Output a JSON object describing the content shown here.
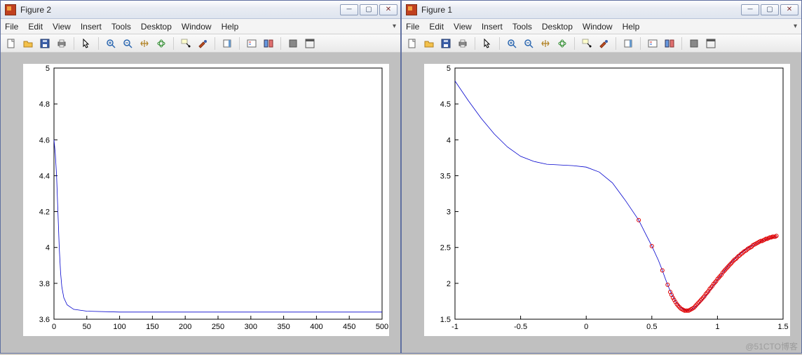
{
  "watermark": "@51CTO博客",
  "menus": [
    "File",
    "Edit",
    "View",
    "Insert",
    "Tools",
    "Desktop",
    "Window",
    "Help"
  ],
  "toolbar_icons": [
    "new-file-icon",
    "open-file-icon",
    "save-icon",
    "print-icon",
    "sep",
    "pointer-icon",
    "sep",
    "zoom-in-icon",
    "zoom-out-icon",
    "pan-icon",
    "rotate3d-icon",
    "sep",
    "data-cursor-icon",
    "brush-icon",
    "sep",
    "insert-colorbar-icon",
    "sep",
    "insert-legend-icon",
    "hide-plot-tools-icon",
    "sep",
    "link-plot-icon",
    "dock-figure-icon"
  ],
  "windows": [
    {
      "id": "fig2",
      "title": "Figure 2",
      "chart": {
        "type": "line",
        "background_color": "#ffffff",
        "axis_color": "#000000",
        "line_color": "#0000cd",
        "line_width": 0.8,
        "xlim": [
          0,
          500
        ],
        "ylim": [
          3.6,
          5.0
        ],
        "xticks": [
          0,
          50,
          100,
          150,
          200,
          250,
          300,
          350,
          400,
          450,
          500
        ],
        "yticks": [
          3.6,
          3.8,
          4.0,
          4.2,
          4.4,
          4.6,
          4.8,
          5.0
        ],
        "ytick_labels": [
          "3.6",
          "3.8",
          "4",
          "4.2",
          "4.4",
          "4.6",
          "4.8",
          "5"
        ],
        "series": [
          {
            "x": 0,
            "y": 4.6
          },
          {
            "x": 2,
            "y": 4.52
          },
          {
            "x": 4,
            "y": 4.4
          },
          {
            "x": 6,
            "y": 4.2
          },
          {
            "x": 8,
            "y": 4.0
          },
          {
            "x": 10,
            "y": 3.86
          },
          {
            "x": 12,
            "y": 3.78
          },
          {
            "x": 15,
            "y": 3.72
          },
          {
            "x": 20,
            "y": 3.68
          },
          {
            "x": 30,
            "y": 3.655
          },
          {
            "x": 50,
            "y": 3.645
          },
          {
            "x": 100,
            "y": 3.64
          },
          {
            "x": 200,
            "y": 3.64
          },
          {
            "x": 300,
            "y": 3.64
          },
          {
            "x": 400,
            "y": 3.64
          },
          {
            "x": 500,
            "y": 3.64
          }
        ]
      }
    },
    {
      "id": "fig1",
      "title": "Figure 1",
      "chart": {
        "type": "line+scatter",
        "background_color": "#ffffff",
        "axis_color": "#000000",
        "line_color": "#0000cd",
        "line_width": 0.8,
        "marker_edge_color": "#e00000",
        "marker_face_color": "none",
        "marker_style": "circle",
        "marker_size": 5,
        "xlim": [
          -1.0,
          1.5
        ],
        "ylim": [
          1.5,
          5.0
        ],
        "xticks": [
          -1,
          -0.5,
          0,
          0.5,
          1,
          1.5
        ],
        "xtick_labels": [
          "-1",
          "-0.5",
          "0",
          "0.5",
          "1",
          "1.5"
        ],
        "yticks": [
          1.5,
          2.0,
          2.5,
          3.0,
          3.5,
          4.0,
          4.5,
          5.0
        ],
        "ytick_labels": [
          "1.5",
          "2",
          "2.5",
          "3",
          "3.5",
          "4",
          "4.5",
          "5"
        ],
        "line_series": [
          {
            "x": -1.0,
            "y": 4.82
          },
          {
            "x": -0.9,
            "y": 4.55
          },
          {
            "x": -0.8,
            "y": 4.3
          },
          {
            "x": -0.7,
            "y": 4.08
          },
          {
            "x": -0.6,
            "y": 3.9
          },
          {
            "x": -0.5,
            "y": 3.77
          },
          {
            "x": -0.4,
            "y": 3.7
          },
          {
            "x": -0.3,
            "y": 3.66
          },
          {
            "x": -0.2,
            "y": 3.65
          },
          {
            "x": -0.1,
            "y": 3.64
          },
          {
            "x": 0.0,
            "y": 3.62
          },
          {
            "x": 0.1,
            "y": 3.55
          },
          {
            "x": 0.2,
            "y": 3.4
          },
          {
            "x": 0.3,
            "y": 3.15
          },
          {
            "x": 0.4,
            "y": 2.88
          },
          {
            "x": 0.45,
            "y": 2.7
          },
          {
            "x": 0.5,
            "y": 2.52
          },
          {
            "x": 0.55,
            "y": 2.32
          },
          {
            "x": 0.58,
            "y": 2.18
          },
          {
            "x": 0.6,
            "y": 2.08
          },
          {
            "x": 0.62,
            "y": 1.98
          },
          {
            "x": 0.65,
            "y": 1.85
          },
          {
            "x": 0.68,
            "y": 1.75
          },
          {
            "x": 0.72,
            "y": 1.66
          },
          {
            "x": 0.76,
            "y": 1.62
          },
          {
            "x": 0.8,
            "y": 1.63
          },
          {
            "x": 0.85,
            "y": 1.7
          },
          {
            "x": 0.9,
            "y": 1.8
          },
          {
            "x": 0.95,
            "y": 1.92
          },
          {
            "x": 1.0,
            "y": 2.05
          },
          {
            "x": 1.05,
            "y": 2.17
          },
          {
            "x": 1.1,
            "y": 2.28
          },
          {
            "x": 1.15,
            "y": 2.37
          },
          {
            "x": 1.2,
            "y": 2.45
          },
          {
            "x": 1.25,
            "y": 2.51
          },
          {
            "x": 1.3,
            "y": 2.56
          },
          {
            "x": 1.35,
            "y": 2.6
          },
          {
            "x": 1.4,
            "y": 2.63
          },
          {
            "x": 1.45,
            "y": 2.65
          }
        ],
        "scatter_series": [
          {
            "x": 0.4,
            "y": 2.88
          },
          {
            "x": 0.5,
            "y": 2.52
          },
          {
            "x": 0.58,
            "y": 2.18
          },
          {
            "x": 0.62,
            "y": 1.98
          },
          {
            "x": 0.64,
            "y": 1.88
          },
          {
            "x": 0.65,
            "y": 1.84
          },
          {
            "x": 0.66,
            "y": 1.8
          },
          {
            "x": 0.67,
            "y": 1.77
          },
          {
            "x": 0.68,
            "y": 1.74
          },
          {
            "x": 0.69,
            "y": 1.71
          },
          {
            "x": 0.7,
            "y": 1.69
          },
          {
            "x": 0.71,
            "y": 1.67
          },
          {
            "x": 0.72,
            "y": 1.65
          },
          {
            "x": 0.73,
            "y": 1.64
          },
          {
            "x": 0.74,
            "y": 1.63
          },
          {
            "x": 0.75,
            "y": 1.62
          },
          {
            "x": 0.76,
            "y": 1.62
          },
          {
            "x": 0.77,
            "y": 1.62
          },
          {
            "x": 0.78,
            "y": 1.62
          },
          {
            "x": 0.79,
            "y": 1.63
          },
          {
            "x": 0.8,
            "y": 1.64
          },
          {
            "x": 0.81,
            "y": 1.65
          },
          {
            "x": 0.82,
            "y": 1.66
          },
          {
            "x": 0.83,
            "y": 1.68
          },
          {
            "x": 0.84,
            "y": 1.7
          },
          {
            "x": 0.85,
            "y": 1.72
          },
          {
            "x": 0.86,
            "y": 1.74
          },
          {
            "x": 0.87,
            "y": 1.76
          },
          {
            "x": 0.88,
            "y": 1.78
          },
          {
            "x": 0.89,
            "y": 1.8
          },
          {
            "x": 0.9,
            "y": 1.82
          },
          {
            "x": 0.91,
            "y": 1.85
          },
          {
            "x": 0.92,
            "y": 1.87
          },
          {
            "x": 0.93,
            "y": 1.89
          },
          {
            "x": 0.94,
            "y": 1.92
          },
          {
            "x": 0.95,
            "y": 1.94
          },
          {
            "x": 0.96,
            "y": 1.96
          },
          {
            "x": 0.97,
            "y": 1.99
          },
          {
            "x": 0.98,
            "y": 2.01
          },
          {
            "x": 0.99,
            "y": 2.03
          },
          {
            "x": 1.0,
            "y": 2.06
          },
          {
            "x": 1.01,
            "y": 2.08
          },
          {
            "x": 1.02,
            "y": 2.1
          },
          {
            "x": 1.03,
            "y": 2.12
          },
          {
            "x": 1.04,
            "y": 2.15
          },
          {
            "x": 1.05,
            "y": 2.17
          },
          {
            "x": 1.06,
            "y": 2.19
          },
          {
            "x": 1.07,
            "y": 2.21
          },
          {
            "x": 1.08,
            "y": 2.23
          },
          {
            "x": 1.09,
            "y": 2.25
          },
          {
            "x": 1.1,
            "y": 2.27
          },
          {
            "x": 1.11,
            "y": 2.29
          },
          {
            "x": 1.12,
            "y": 2.31
          },
          {
            "x": 1.13,
            "y": 2.33
          },
          {
            "x": 1.14,
            "y": 2.34
          },
          {
            "x": 1.15,
            "y": 2.36
          },
          {
            "x": 1.16,
            "y": 2.38
          },
          {
            "x": 1.17,
            "y": 2.39
          },
          {
            "x": 1.18,
            "y": 2.41
          },
          {
            "x": 1.19,
            "y": 2.42
          },
          {
            "x": 1.2,
            "y": 2.44
          },
          {
            "x": 1.21,
            "y": 2.45
          },
          {
            "x": 1.22,
            "y": 2.46
          },
          {
            "x": 1.23,
            "y": 2.48
          },
          {
            "x": 1.24,
            "y": 2.49
          },
          {
            "x": 1.25,
            "y": 2.5
          },
          {
            "x": 1.26,
            "y": 2.51
          },
          {
            "x": 1.27,
            "y": 2.53
          },
          {
            "x": 1.28,
            "y": 2.54
          },
          {
            "x": 1.29,
            "y": 2.55
          },
          {
            "x": 1.3,
            "y": 2.56
          },
          {
            "x": 1.31,
            "y": 2.57
          },
          {
            "x": 1.32,
            "y": 2.58
          },
          {
            "x": 1.33,
            "y": 2.59
          },
          {
            "x": 1.34,
            "y": 2.59
          },
          {
            "x": 1.35,
            "y": 2.6
          },
          {
            "x": 1.36,
            "y": 2.61
          },
          {
            "x": 1.37,
            "y": 2.62
          },
          {
            "x": 1.38,
            "y": 2.62
          },
          {
            "x": 1.39,
            "y": 2.63
          },
          {
            "x": 1.4,
            "y": 2.64
          },
          {
            "x": 1.41,
            "y": 2.64
          },
          {
            "x": 1.42,
            "y": 2.65
          },
          {
            "x": 1.43,
            "y": 2.65
          },
          {
            "x": 1.44,
            "y": 2.65
          },
          {
            "x": 1.45,
            "y": 2.66
          }
        ]
      }
    }
  ]
}
